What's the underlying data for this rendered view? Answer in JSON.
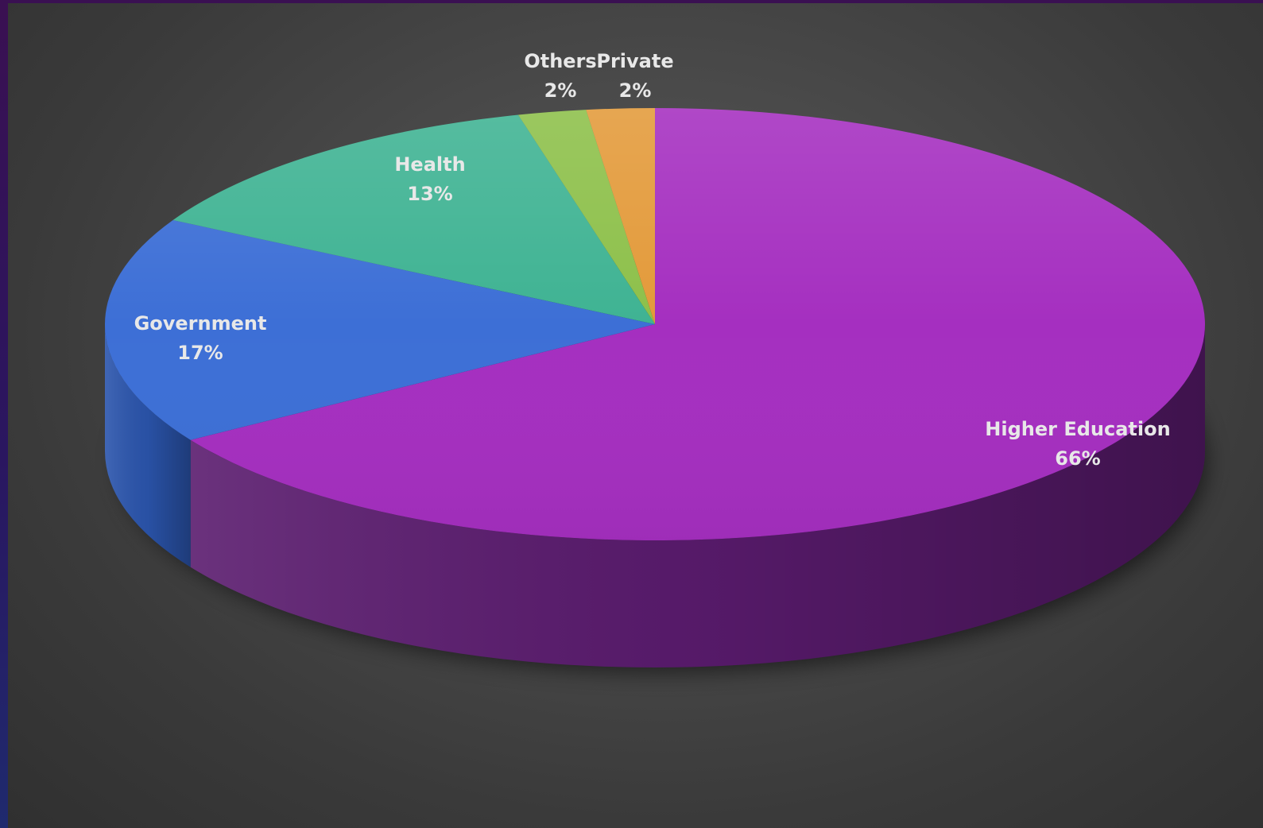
{
  "chart_data": {
    "type": "pie",
    "title": "",
    "style": "3d",
    "slices": [
      {
        "label": "Higher Education",
        "value": 66,
        "value_label": "66%",
        "color": "#a52fc0",
        "side_color": "#5a1b6e"
      },
      {
        "label": "Government",
        "value": 17,
        "value_label": "17%",
        "color": "#3d6fd6",
        "side_color": "#2b55ad"
      },
      {
        "label": "Health",
        "value": 13,
        "value_label": "13%",
        "color": "#3fb393",
        "side_color": "#2a8a70"
      },
      {
        "label": "Others",
        "value": 2,
        "value_label": "2%",
        "color": "#8dc04a",
        "side_color": "#6a9636"
      },
      {
        "label": "Private",
        "value": 2,
        "value_label": "2%",
        "color": "#e39a3a",
        "side_color": "#b0742a"
      }
    ]
  }
}
